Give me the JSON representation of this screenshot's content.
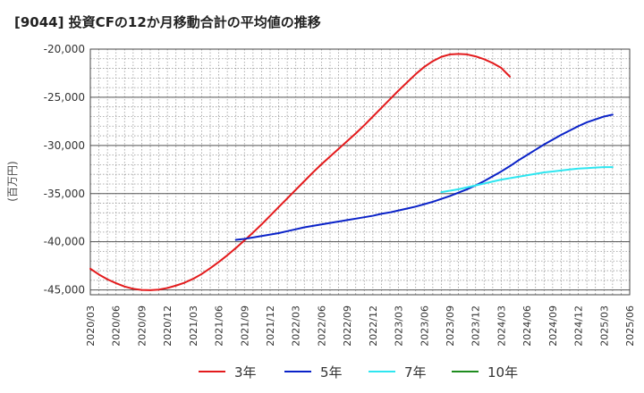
{
  "chart_data": {
    "type": "line",
    "title": "[9044]  投資CFの12か月移動合計の平均値の推移",
    "ylabel": "(百万円)",
    "xlabel": "",
    "ylim": [
      -45500,
      -20000
    ],
    "yticks": [
      -20000,
      -25000,
      -30000,
      -35000,
      -40000,
      -45000
    ],
    "ytick_labels": [
      "-20,000",
      "-25,000",
      "-30,000",
      "-35,000",
      "-40,000",
      "-45,000"
    ],
    "xtick_labels": [
      "2020/03",
      "2020/06",
      "2020/09",
      "2020/12",
      "2021/03",
      "2021/06",
      "2021/09",
      "2021/12",
      "2022/03",
      "2022/06",
      "2022/09",
      "2022/12",
      "2023/03",
      "2023/06",
      "2023/09",
      "2023/12",
      "2024/03",
      "2024/06",
      "2024/09",
      "2024/12",
      "2025/03",
      "2025/06"
    ],
    "grid": true,
    "legend_position": "bottom",
    "series": [
      {
        "name": "3年",
        "color": "#e31a1c",
        "start": "2020/03",
        "values": [
          -42800,
          -43400,
          -43900,
          -44300,
          -44650,
          -44880,
          -45000,
          -45030,
          -44970,
          -44800,
          -44550,
          -44250,
          -43850,
          -43350,
          -42750,
          -42100,
          -41400,
          -40650,
          -39850,
          -39050,
          -38200,
          -37300,
          -36400,
          -35500,
          -34600,
          -33700,
          -32800,
          -31950,
          -31150,
          -30350,
          -29550,
          -28750,
          -27900,
          -27000,
          -26100,
          -25200,
          -24300,
          -23450,
          -22600,
          -21850,
          -21250,
          -20800,
          -20550,
          -20500,
          -20550,
          -20750,
          -21050,
          -21450,
          -21950,
          -22850
        ]
      },
      {
        "name": "5年",
        "color": "#0a22c8",
        "start": "2021/08",
        "values": [
          -39800,
          -39700,
          -39550,
          -39400,
          -39250,
          -39100,
          -38900,
          -38700,
          -38500,
          -38350,
          -38200,
          -38050,
          -37900,
          -37750,
          -37600,
          -37450,
          -37300,
          -37100,
          -36950,
          -36750,
          -36550,
          -36350,
          -36100,
          -35850,
          -35550,
          -35250,
          -34900,
          -34550,
          -34150,
          -33700,
          -33200,
          -32700,
          -32150,
          -31550,
          -31000,
          -30450,
          -29900,
          -29400,
          -28900,
          -28450,
          -28000,
          -27600,
          -27300,
          -27000,
          -26800
        ]
      },
      {
        "name": "7年",
        "color": "#2ee6f0",
        "start": "2023/08",
        "values": [
          -34850,
          -34700,
          -34550,
          -34350,
          -34150,
          -33950,
          -33750,
          -33550,
          -33400,
          -33250,
          -33100,
          -32950,
          -32800,
          -32700,
          -32600,
          -32500,
          -32400,
          -32350,
          -32300,
          -32250,
          -32250
        ]
      },
      {
        "name": "10年",
        "color": "#1e8c1e",
        "start": "2025/03",
        "values": []
      }
    ]
  }
}
